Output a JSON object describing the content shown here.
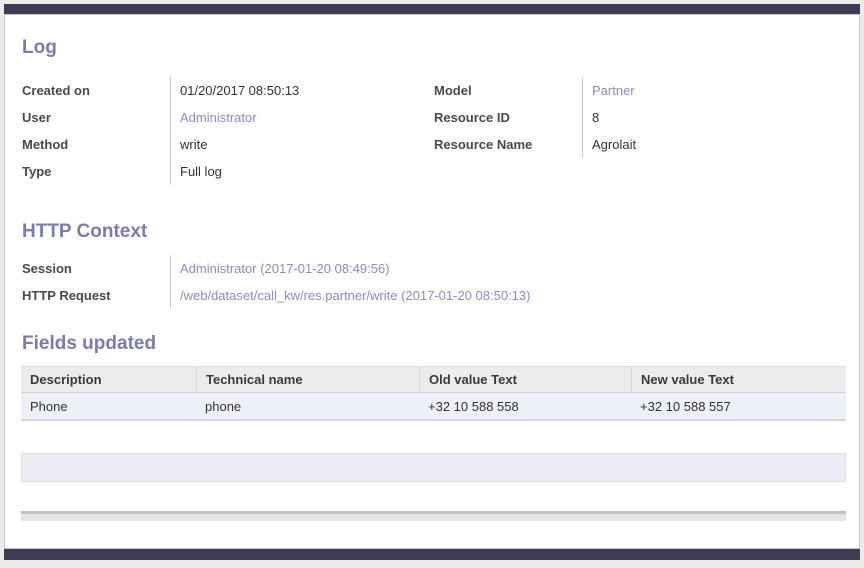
{
  "colors": {
    "backdrop": "#3e3b55",
    "heading": "#7c7bad",
    "link": "#8d8bc2",
    "thbg": "#ececec",
    "rowbg": "#eef0f8"
  },
  "log": {
    "title": "Log",
    "left": [
      {
        "label": "Created on",
        "value": "01/20/2017 08:50:13"
      },
      {
        "label": "User",
        "value": "Administrator"
      },
      {
        "label": "Method",
        "value": "write"
      },
      {
        "label": "Type",
        "value": "Full log"
      }
    ],
    "right": [
      {
        "label": "Model",
        "value": "Partner"
      },
      {
        "label": "Resource ID",
        "value": "8"
      },
      {
        "label": "Resource Name",
        "value": "Agrolait"
      }
    ]
  },
  "http": {
    "title": "HTTP Context",
    "fields": [
      {
        "label": "Session",
        "value": "Administrator (2017-01-20 08:49:56)"
      },
      {
        "label": "HTTP Request",
        "value": "/web/dataset/call_kw/res.partner/write (2017-01-20 08:50:13)"
      }
    ]
  },
  "updated": {
    "title": "Fields updated",
    "columns": [
      "Description",
      "Technical name",
      "Old value Text",
      "New value Text"
    ],
    "rows": [
      [
        "Phone",
        "phone",
        "+32 10 588 558",
        "+32 10 588 557"
      ]
    ]
  }
}
